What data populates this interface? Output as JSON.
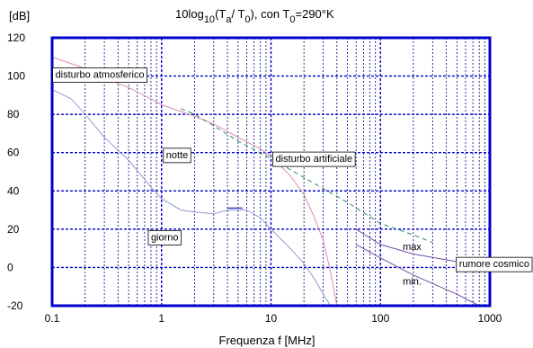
{
  "chart_data": {
    "type": "line",
    "title": {
      "prefix": "10log",
      "sub1": "10",
      "mid1": "(T",
      "sub2": "a",
      "mid2": "/ T",
      "sub3": "0",
      "mid3": "), con T",
      "sub4": "0",
      "suffix": "=290°K"
    },
    "ylabel": "[dB]",
    "xlabel": "Frequenza f [MHz]",
    "xscale": "log",
    "xlim": [
      0.1,
      1000
    ],
    "ylim": [
      -20,
      120
    ],
    "x_ticks": [
      "0.1",
      "1",
      "10",
      "100",
      "1000"
    ],
    "y_ticks": [
      "-20",
      "0",
      "20",
      "40",
      "60",
      "80",
      "100",
      "120"
    ],
    "grid": true,
    "series": [
      {
        "label_key": "atmos",
        "color": "#d98fb0",
        "style": "solid",
        "points": [
          [
            0.1,
            110
          ],
          [
            0.2,
            104
          ],
          [
            0.3,
            99
          ],
          [
            0.5,
            94
          ],
          [
            0.8,
            88
          ],
          [
            1,
            85
          ],
          [
            2,
            79
          ],
          [
            3,
            75
          ],
          [
            5,
            68
          ],
          [
            8,
            62
          ],
          [
            10,
            58
          ],
          [
            15,
            48
          ],
          [
            20,
            38
          ],
          [
            25,
            26
          ],
          [
            30,
            14
          ],
          [
            35,
            -2
          ],
          [
            40,
            -20
          ]
        ]
      },
      {
        "label_key": "notte",
        "color": "#9898d8",
        "style": "solid",
        "points": [
          [
            0.1,
            93
          ],
          [
            0.15,
            88
          ],
          [
            0.2,
            80
          ],
          [
            0.3,
            68
          ],
          [
            0.5,
            56
          ],
          [
            0.8,
            42
          ],
          [
            1,
            36
          ],
          [
            1.5,
            30
          ],
          [
            2,
            29
          ],
          [
            3,
            28
          ],
          [
            4,
            30
          ],
          [
            5,
            30
          ],
          [
            6,
            30
          ],
          [
            8,
            26
          ],
          [
            10,
            20
          ],
          [
            15,
            10
          ],
          [
            20,
            2
          ],
          [
            25,
            -6
          ],
          [
            30,
            -14
          ],
          [
            35,
            -20
          ]
        ]
      },
      {
        "label_key": "giorno",
        "color": "#3030c0",
        "style": "solid",
        "points": [
          [
            4,
            31
          ],
          [
            5.5,
            31
          ]
        ]
      },
      {
        "label_key": "artif",
        "color": "#2e8b57",
        "style": "dashed",
        "points": [
          [
            1.5,
            83
          ],
          [
            2,
            80
          ],
          [
            3,
            74
          ],
          [
            5,
            66
          ],
          [
            10,
            57
          ],
          [
            20,
            47
          ],
          [
            50,
            34
          ],
          [
            100,
            23
          ],
          [
            200,
            17
          ],
          [
            300,
            13
          ]
        ]
      },
      {
        "label_key": "max",
        "color": "#7a4ca0",
        "style": "solid",
        "points": [
          [
            60,
            20
          ],
          [
            100,
            12
          ],
          [
            200,
            7
          ],
          [
            500,
            3
          ],
          [
            1000,
            1
          ]
        ]
      },
      {
        "label_key": "min",
        "color": "#7a4ca0",
        "style": "solid",
        "points": [
          [
            60,
            12
          ],
          [
            100,
            5
          ],
          [
            200,
            -4
          ],
          [
            500,
            -14
          ],
          [
            800,
            -20
          ]
        ]
      }
    ],
    "annotations": {
      "atmos": {
        "text": "disturbo  atmosferico",
        "x": 0.107,
        "y": 101
      },
      "notte": {
        "text": "notte",
        "x": 1.1,
        "y": 59
      },
      "artif": {
        "text": "disturbo  artificiale",
        "x": 11,
        "y": 57
      },
      "giorno": {
        "text": "giorno",
        "x": 0.8,
        "y": 16
      },
      "max": {
        "text": "max",
        "x": 160,
        "y": 11
      },
      "rumore": {
        "text": "rumore  cosmico",
        "x": 560,
        "y": 2
      },
      "min": {
        "text": "min.",
        "x": 160,
        "y": -7
      }
    }
  }
}
